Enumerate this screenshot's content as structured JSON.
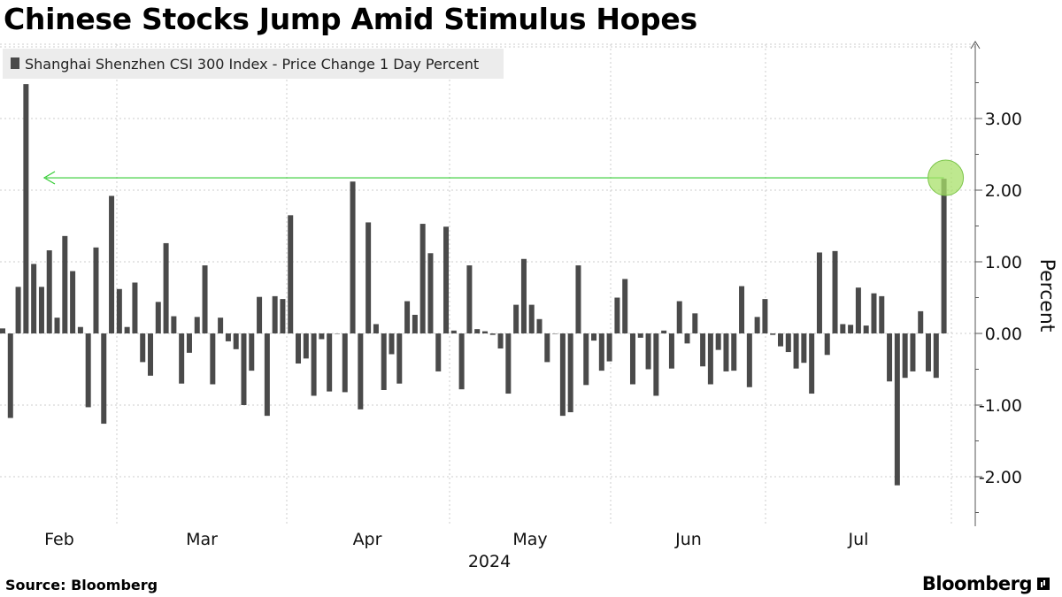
{
  "title": "Chinese Stocks Jump Amid Stimulus Hopes",
  "source": "Source: Bloomberg",
  "brand": "Bloomberg",
  "colors": {
    "bar": "#4a4a4a",
    "highlight_line": "#33cc33",
    "highlight_marker": "#a8e06a",
    "grid": "#cccccc",
    "legend_bg": "#ececec"
  },
  "chart_data": {
    "type": "bar",
    "ylabel": "Percent",
    "ylim": [
      -2.6,
      4.0
    ],
    "yticks": [
      3.0,
      2.0,
      1.0,
      0.0,
      -1.0,
      -2.0
    ],
    "ytick_labels": [
      "3.00",
      "2.00",
      "1.00",
      "0.00",
      "-1.00",
      "-2.00"
    ],
    "xticks": [
      "Feb",
      "Mar",
      "Apr",
      "May",
      "Jun",
      "Jul"
    ],
    "xlabel_year": "2024",
    "legend_position": "top-left",
    "grid": true,
    "series": [
      {
        "name": "Shanghai Shenzhen CSI 300 Index - Price Change 1 Day Percent",
        "values": [
          0.07,
          -1.18,
          0.65,
          3.48,
          0.97,
          0.65,
          1.16,
          0.22,
          1.36,
          0.87,
          0.09,
          -1.03,
          1.2,
          -1.26,
          1.92,
          0.62,
          0.09,
          0.71,
          -0.4,
          -0.59,
          0.44,
          1.26,
          0.24,
          -0.7,
          -0.27,
          0.23,
          0.95,
          -0.71,
          0.22,
          -0.11,
          -0.22,
          -1.0,
          -0.52,
          0.51,
          -1.15,
          0.52,
          0.48,
          1.65,
          -0.42,
          -0.35,
          -0.87,
          -0.08,
          -0.81,
          0.0,
          -0.82,
          2.12,
          -1.06,
          1.55,
          0.13,
          -0.79,
          -0.29,
          -0.7,
          0.45,
          0.26,
          1.53,
          1.12,
          -0.53,
          1.49,
          0.04,
          -0.78,
          0.95,
          0.06,
          0.03,
          -0.02,
          -0.21,
          -0.84,
          0.4,
          1.04,
          0.4,
          0.2,
          -0.4,
          0.0,
          -1.15,
          -1.1,
          0.95,
          -0.72,
          -0.1,
          -0.52,
          -0.39,
          0.5,
          0.76,
          -0.71,
          -0.06,
          -0.5,
          -0.87,
          0.04,
          -0.49,
          0.45,
          -0.14,
          0.28,
          -0.46,
          -0.71,
          -0.23,
          -0.53,
          -0.52,
          0.66,
          -0.75,
          0.23,
          0.48,
          -0.02,
          -0.18,
          -0.26,
          -0.49,
          -0.41,
          -0.84,
          1.13,
          -0.3,
          1.15,
          0.13,
          0.12,
          0.64,
          0.11,
          0.56,
          0.52,
          -0.67,
          -2.12,
          -0.62,
          -0.53,
          0.31,
          -0.53,
          -0.62,
          2.16
        ]
      }
    ],
    "annotation": {
      "type": "horizontal-arrow",
      "at_value": 2.16,
      "highlight_last_bar": true
    }
  }
}
